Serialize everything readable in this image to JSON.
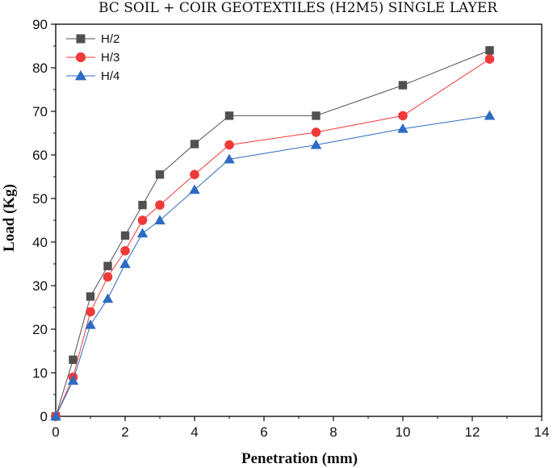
{
  "chart_data": {
    "type": "line",
    "title": "BC SOIL + COIR GEOTEXTILES (H2M5) SINGLE LAYER",
    "xlabel": "Penetration (mm)",
    "ylabel": "Load (Kg)",
    "xlim": [
      0,
      14
    ],
    "ylim": [
      0,
      90
    ],
    "xticks": [
      "0",
      "2",
      "4",
      "6",
      "8",
      "10",
      "12",
      "14"
    ],
    "yticks": [
      "0",
      "10",
      "20",
      "30",
      "40",
      "50",
      "60",
      "70",
      "80",
      "90"
    ],
    "grid": false,
    "legend_position": "top-left",
    "x": [
      0,
      0.5,
      1,
      1.5,
      2,
      2.5,
      3,
      4,
      5,
      7.5,
      10,
      12.5
    ],
    "series": [
      {
        "name": "H/2",
        "marker": "square",
        "color": "#505050",
        "values": [
          0,
          13,
          27.5,
          34.5,
          41.5,
          48.5,
          55.5,
          62.5,
          69,
          69,
          76,
          84
        ]
      },
      {
        "name": "H/3",
        "marker": "circle",
        "color": "#f03a3a",
        "values": [
          0,
          9,
          24,
          32,
          38,
          45,
          48.5,
          55.5,
          62.3,
          65.2,
          69,
          82
        ]
      },
      {
        "name": "H/4",
        "marker": "triangle",
        "color": "#2d6bc4",
        "values": [
          0,
          8.2,
          21,
          27,
          35,
          42,
          45,
          52,
          59,
          62.3,
          66,
          69
        ]
      }
    ]
  }
}
